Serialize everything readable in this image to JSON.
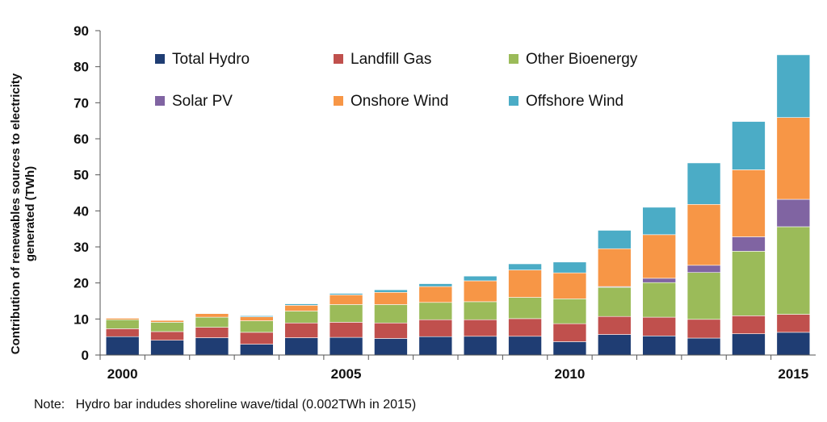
{
  "chart_data": {
    "type": "bar",
    "stacked": true,
    "title": "",
    "xlabel": "",
    "ylabel_lines": [
      "Contribution of renewables sources to electricity",
      "generated (TWh)"
    ],
    "ylim": [
      0,
      90
    ],
    "yticks": [
      0,
      10,
      20,
      30,
      40,
      50,
      60,
      70,
      80,
      90
    ],
    "xtick_labels": [
      {
        "label": "2000",
        "category": "2000"
      },
      {
        "label": "2005",
        "category": "2005"
      },
      {
        "label": "2010",
        "category": "2010"
      },
      {
        "label": "2015",
        "category": "2015"
      }
    ],
    "categories": [
      "2000",
      "2001",
      "2002",
      "2003",
      "2004",
      "2005",
      "2006",
      "2007",
      "2008",
      "2009",
      "2010",
      "2011",
      "2012",
      "2013",
      "2014",
      "2015"
    ],
    "legend_placement": "top-left, inside plot, 2 rows x 3 columns",
    "series": [
      {
        "name": "Total Hydro",
        "color": "#1f3d73",
        "values": [
          5.1,
          4.1,
          4.8,
          3.0,
          4.8,
          4.9,
          4.6,
          5.1,
          5.2,
          5.2,
          3.7,
          5.7,
          5.3,
          4.7,
          5.9,
          6.3
        ]
      },
      {
        "name": "Landfill Gas",
        "color": "#c0504d",
        "values": [
          2.2,
          2.4,
          2.9,
          3.3,
          4.1,
          4.2,
          4.3,
          4.7,
          4.6,
          4.9,
          5.0,
          5.0,
          5.2,
          5.2,
          5.0,
          5.0
        ]
      },
      {
        "name": "Other Bioenergy",
        "color": "#9bbb59",
        "values": [
          2.5,
          2.6,
          2.8,
          3.2,
          3.3,
          4.9,
          5.1,
          4.8,
          5.0,
          5.9,
          6.9,
          8.1,
          9.6,
          13.0,
          17.9,
          24.3
        ]
      },
      {
        "name": "Solar PV",
        "color": "#8064a2",
        "values": [
          0.0,
          0.0,
          0.0,
          0.0,
          0.0,
          0.0,
          0.0,
          0.0,
          0.0,
          0.0,
          0.0,
          0.2,
          1.2,
          2.0,
          4.0,
          7.6
        ]
      },
      {
        "name": "Onshore Wind",
        "color": "#f79646",
        "values": [
          0.4,
          0.5,
          1.0,
          1.1,
          1.6,
          2.7,
          3.4,
          4.4,
          5.8,
          7.6,
          7.2,
          10.5,
          12.1,
          16.9,
          18.6,
          22.7
        ]
      },
      {
        "name": "Offshore Wind",
        "color": "#4bacc6",
        "values": [
          0.0,
          0.0,
          0.1,
          0.3,
          0.4,
          0.4,
          0.7,
          0.8,
          1.3,
          1.7,
          3.0,
          5.1,
          7.6,
          11.5,
          13.4,
          17.4
        ]
      }
    ]
  },
  "note": {
    "prefix": "Note:",
    "text": "Hydro bar indudes shoreline wave/tidal (0.002TWh in 2015)"
  }
}
